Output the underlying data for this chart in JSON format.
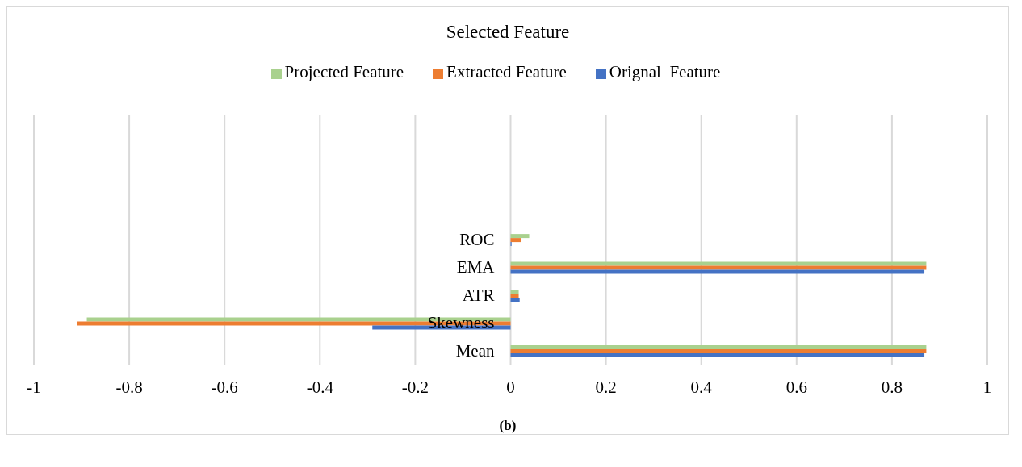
{
  "chart_data": {
    "type": "bar",
    "orientation": "horizontal",
    "title": "Selected Feature",
    "categories": [
      null,
      null,
      null,
      null,
      "ROC",
      "EMA",
      "ATR",
      "Skewness",
      "Mean"
    ],
    "series": [
      {
        "name": "Projected Feature",
        "color": "#a9d18e",
        "values": [
          null,
          null,
          null,
          null,
          0.039,
          0.872,
          0.017,
          -0.889,
          0.872
        ]
      },
      {
        "name": "Extracted Feature",
        "color": "#ed7d31",
        "values": [
          null,
          null,
          null,
          null,
          0.022,
          0.872,
          0.017,
          -0.909,
          0.872
        ]
      },
      {
        "name": "Orignal  Feature",
        "color": "#4472c4",
        "values": [
          null,
          null,
          null,
          null,
          0.002,
          0.868,
          0.019,
          -0.29,
          0.868
        ]
      }
    ],
    "xlim": [
      -1,
      1
    ],
    "xticks": [
      -1,
      -0.8,
      -0.6,
      -0.4,
      -0.2,
      0,
      0.2,
      0.4,
      0.6,
      0.8,
      1
    ],
    "grid": "x",
    "legend": "top",
    "annotations": [
      "(b)"
    ]
  }
}
